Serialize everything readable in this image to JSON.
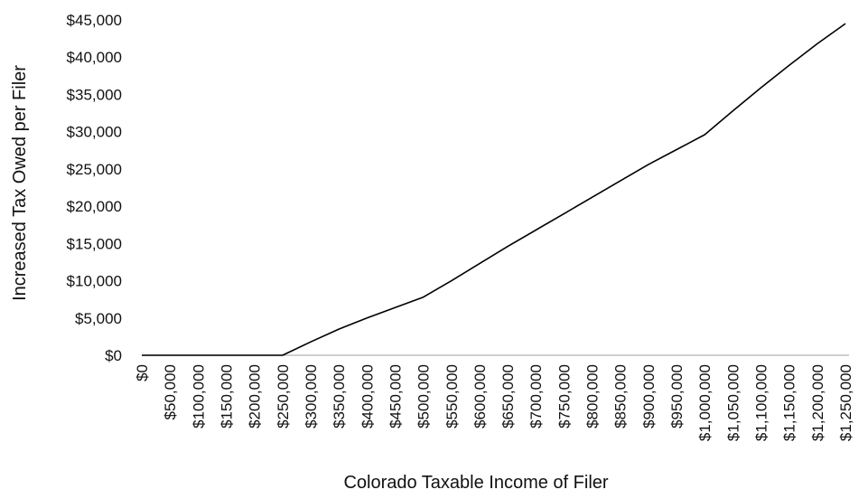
{
  "chart_data": {
    "type": "line",
    "title": "",
    "xlabel": "Colorado Taxable Income of Filer",
    "ylabel": "Increased Tax Owed per Filer",
    "x": [
      0,
      50000,
      100000,
      150000,
      200000,
      250000,
      300000,
      350000,
      400000,
      450000,
      500000,
      550000,
      600000,
      650000,
      700000,
      750000,
      800000,
      850000,
      900000,
      950000,
      1000000,
      1050000,
      1100000,
      1150000,
      1200000,
      1250000
    ],
    "series": [
      {
        "values": [
          0,
          0,
          0,
          0,
          0,
          0,
          1800,
          3500,
          5000,
          6400,
          7800,
          10000,
          12300,
          14600,
          16800,
          19000,
          21200,
          23400,
          25600,
          27600,
          29600,
          32800,
          35900,
          38900,
          41800,
          44500
        ]
      }
    ],
    "x_tick_labels": [
      "$0",
      "$50,000",
      "$100,000",
      "$150,000",
      "$200,000",
      "$250,000",
      "$300,000",
      "$350,000",
      "$400,000",
      "$450,000",
      "$500,000",
      "$550,000",
      "$600,000",
      "$650,000",
      "$700,000",
      "$750,000",
      "$800,000",
      "$850,000",
      "$900,000",
      "$950,000",
      "$1,000,000",
      "$1,050,000",
      "$1,100,000",
      "$1,150,000",
      "$1,200,000",
      "$1,250,000"
    ],
    "y_ticks": [
      0,
      5000,
      10000,
      15000,
      20000,
      25000,
      30000,
      35000,
      40000,
      45000
    ],
    "y_tick_labels": [
      "$0",
      "$5,000",
      "$10,000",
      "$15,000",
      "$20,000",
      "$25,000",
      "$30,000",
      "$35,000",
      "$40,000",
      "$45,000"
    ],
    "ylim": [
      0,
      45000
    ],
    "xlim": [
      0,
      1250000
    ],
    "grid": false,
    "line_color": "#000000",
    "axis_color": "#bfbfbf"
  }
}
